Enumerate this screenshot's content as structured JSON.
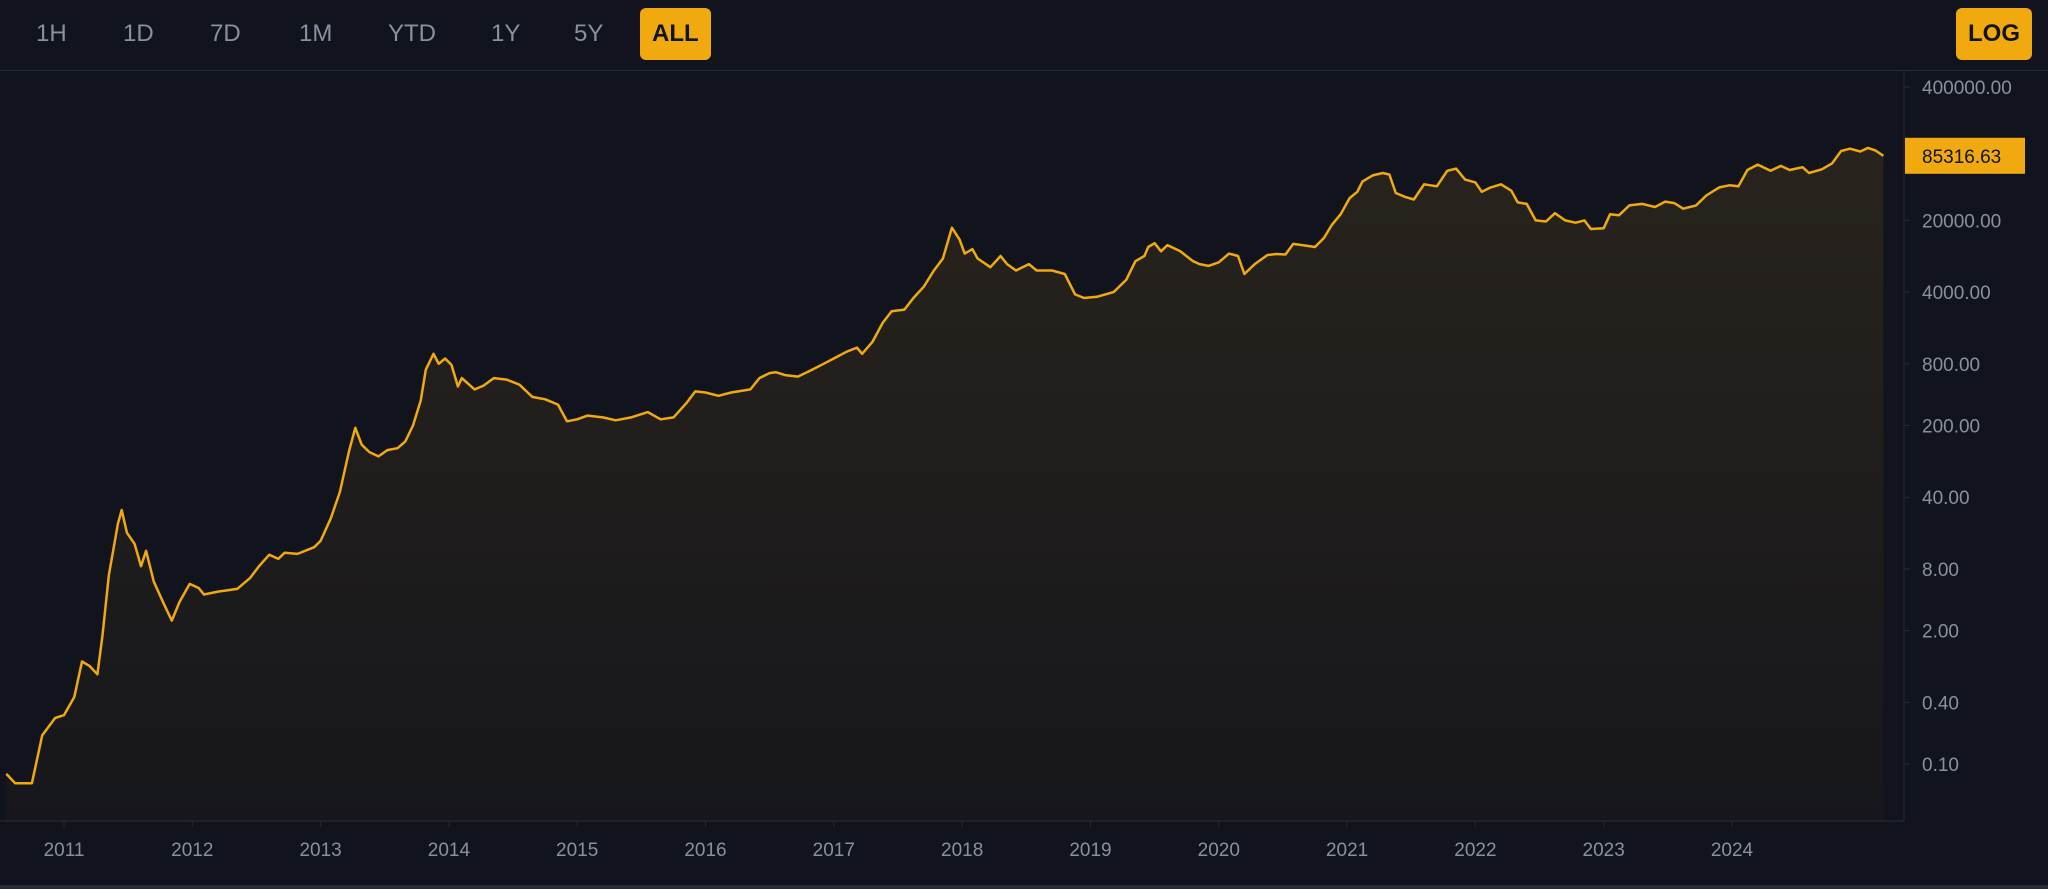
{
  "toolbar": {
    "ranges": [
      {
        "label": "1H",
        "active": false
      },
      {
        "label": "1D",
        "active": false
      },
      {
        "label": "7D",
        "active": false
      },
      {
        "label": "1M",
        "active": false
      },
      {
        "label": "YTD",
        "active": false
      },
      {
        "label": "1Y",
        "active": false
      },
      {
        "label": "5Y",
        "active": false
      },
      {
        "label": "ALL",
        "active": true
      }
    ],
    "log_label": "LOG"
  },
  "colors": {
    "background": "#12141d",
    "accent": "#f0a90f",
    "grid_text": "#8a90a0"
  },
  "chart_data": {
    "type": "line",
    "scale": "log",
    "title": "",
    "xlabel": "",
    "ylabel": "",
    "y_ticks": [
      400000,
      20000,
      4000,
      800,
      200,
      40,
      8,
      2,
      0.4,
      0.1
    ],
    "y_tick_labels": [
      "400000.00",
      "20000.00",
      "4000.00",
      "800.00",
      "200.00",
      "40.00",
      "8.00",
      "2.00",
      "0.40",
      "0.10"
    ],
    "x_tick_labels": [
      "2011",
      "2012",
      "2013",
      "2014",
      "2015",
      "2016",
      "2017",
      "2018",
      "2019",
      "2020",
      "2021",
      "2022",
      "2023",
      "2024"
    ],
    "last_price": 85316.63,
    "last_price_label": "85316.63",
    "series": [
      {
        "values": [
          [
            2010.55,
            0.08
          ],
          [
            2010.62,
            0.065
          ],
          [
            2010.75,
            0.065
          ],
          [
            2010.83,
            0.19
          ],
          [
            2010.93,
            0.28
          ],
          [
            2011.0,
            0.3
          ],
          [
            2011.08,
            0.45
          ],
          [
            2011.14,
            1.0
          ],
          [
            2011.2,
            0.9
          ],
          [
            2011.26,
            0.75
          ],
          [
            2011.3,
            1.8
          ],
          [
            2011.35,
            7
          ],
          [
            2011.42,
            22
          ],
          [
            2011.45,
            30
          ],
          [
            2011.49,
            18
          ],
          [
            2011.55,
            14
          ],
          [
            2011.6,
            8.5
          ],
          [
            2011.64,
            12
          ],
          [
            2011.7,
            6
          ],
          [
            2011.78,
            3.6
          ],
          [
            2011.84,
            2.5
          ],
          [
            2011.9,
            3.8
          ],
          [
            2011.98,
            5.7
          ],
          [
            2012.05,
            5.2
          ],
          [
            2012.09,
            4.5
          ],
          [
            2012.2,
            4.8
          ],
          [
            2012.35,
            5.1
          ],
          [
            2012.45,
            6.5
          ],
          [
            2012.52,
            8.5
          ],
          [
            2012.6,
            11
          ],
          [
            2012.67,
            10
          ],
          [
            2012.72,
            11.5
          ],
          [
            2012.82,
            11.2
          ],
          [
            2012.95,
            13
          ],
          [
            2013.0,
            15
          ],
          [
            2013.08,
            25
          ],
          [
            2013.15,
            45
          ],
          [
            2013.22,
            110
          ],
          [
            2013.27,
            190
          ],
          [
            2013.32,
            130
          ],
          [
            2013.38,
            110
          ],
          [
            2013.45,
            100
          ],
          [
            2013.52,
            115
          ],
          [
            2013.6,
            120
          ],
          [
            2013.66,
            140
          ],
          [
            2013.72,
            200
          ],
          [
            2013.78,
            350
          ],
          [
            2013.82,
            700
          ],
          [
            2013.88,
            1000
          ],
          [
            2013.92,
            800
          ],
          [
            2013.97,
            900
          ],
          [
            2014.02,
            780
          ],
          [
            2014.07,
            480
          ],
          [
            2014.1,
            580
          ],
          [
            2014.2,
            450
          ],
          [
            2014.27,
            490
          ],
          [
            2014.35,
            580
          ],
          [
            2014.45,
            560
          ],
          [
            2014.55,
            500
          ],
          [
            2014.65,
            380
          ],
          [
            2014.75,
            360
          ],
          [
            2014.85,
            320
          ],
          [
            2014.92,
            220
          ],
          [
            2015.0,
            230
          ],
          [
            2015.08,
            250
          ],
          [
            2015.2,
            240
          ],
          [
            2015.3,
            225
          ],
          [
            2015.42,
            240
          ],
          [
            2015.55,
            270
          ],
          [
            2015.65,
            230
          ],
          [
            2015.75,
            240
          ],
          [
            2015.85,
            330
          ],
          [
            2015.92,
            430
          ],
          [
            2016.0,
            420
          ],
          [
            2016.1,
            390
          ],
          [
            2016.2,
            420
          ],
          [
            2016.35,
            450
          ],
          [
            2016.42,
            580
          ],
          [
            2016.5,
            650
          ],
          [
            2016.55,
            660
          ],
          [
            2016.62,
            620
          ],
          [
            2016.72,
            600
          ],
          [
            2016.82,
            690
          ],
          [
            2016.92,
            800
          ],
          [
            2017.0,
            900
          ],
          [
            2017.1,
            1050
          ],
          [
            2017.18,
            1150
          ],
          [
            2017.22,
            1000
          ],
          [
            2017.3,
            1300
          ],
          [
            2017.38,
            2000
          ],
          [
            2017.45,
            2600
          ],
          [
            2017.55,
            2700
          ],
          [
            2017.62,
            3500
          ],
          [
            2017.7,
            4500
          ],
          [
            2017.78,
            6500
          ],
          [
            2017.85,
            8500
          ],
          [
            2017.92,
            17000
          ],
          [
            2017.98,
            13000
          ],
          [
            2018.02,
            9500
          ],
          [
            2018.08,
            10500
          ],
          [
            2018.12,
            8500
          ],
          [
            2018.22,
            7000
          ],
          [
            2018.3,
            9000
          ],
          [
            2018.35,
            7500
          ],
          [
            2018.42,
            6500
          ],
          [
            2018.52,
            7500
          ],
          [
            2018.58,
            6500
          ],
          [
            2018.7,
            6500
          ],
          [
            2018.8,
            6000
          ],
          [
            2018.88,
            3800
          ],
          [
            2018.95,
            3500
          ],
          [
            2019.05,
            3600
          ],
          [
            2019.18,
            4000
          ],
          [
            2019.28,
            5300
          ],
          [
            2019.35,
            8000
          ],
          [
            2019.42,
            9000
          ],
          [
            2019.45,
            11000
          ],
          [
            2019.5,
            12000
          ],
          [
            2019.55,
            10000
          ],
          [
            2019.6,
            11500
          ],
          [
            2019.7,
            10000
          ],
          [
            2019.8,
            8000
          ],
          [
            2019.85,
            7500
          ],
          [
            2019.92,
            7200
          ],
          [
            2020.0,
            7800
          ],
          [
            2020.08,
            9500
          ],
          [
            2020.15,
            9000
          ],
          [
            2020.2,
            6000
          ],
          [
            2020.28,
            7500
          ],
          [
            2020.38,
            9200
          ],
          [
            2020.45,
            9400
          ],
          [
            2020.52,
            9300
          ],
          [
            2020.58,
            11800
          ],
          [
            2020.65,
            11500
          ],
          [
            2020.75,
            11000
          ],
          [
            2020.82,
            13500
          ],
          [
            2020.88,
            18000
          ],
          [
            2020.95,
            23000
          ],
          [
            2021.02,
            33000
          ],
          [
            2021.08,
            38000
          ],
          [
            2021.12,
            48000
          ],
          [
            2021.2,
            55000
          ],
          [
            2021.28,
            58000
          ],
          [
            2021.33,
            56000
          ],
          [
            2021.38,
            37000
          ],
          [
            2021.45,
            34000
          ],
          [
            2021.52,
            32000
          ],
          [
            2021.6,
            45000
          ],
          [
            2021.7,
            43000
          ],
          [
            2021.78,
            61000
          ],
          [
            2021.85,
            64000
          ],
          [
            2021.92,
            50000
          ],
          [
            2022.0,
            47000
          ],
          [
            2022.05,
            38000
          ],
          [
            2022.12,
            42000
          ],
          [
            2022.2,
            45000
          ],
          [
            2022.28,
            39000
          ],
          [
            2022.33,
            30000
          ],
          [
            2022.4,
            29000
          ],
          [
            2022.47,
            20000
          ],
          [
            2022.55,
            19500
          ],
          [
            2022.62,
            23500
          ],
          [
            2022.7,
            20000
          ],
          [
            2022.78,
            19000
          ],
          [
            2022.85,
            20000
          ],
          [
            2022.9,
            16500
          ],
          [
            2023.0,
            16800
          ],
          [
            2023.05,
            23000
          ],
          [
            2023.12,
            22500
          ],
          [
            2023.2,
            28000
          ],
          [
            2023.3,
            29000
          ],
          [
            2023.4,
            27000
          ],
          [
            2023.48,
            30500
          ],
          [
            2023.55,
            29500
          ],
          [
            2023.62,
            26000
          ],
          [
            2023.72,
            28000
          ],
          [
            2023.8,
            35000
          ],
          [
            2023.9,
            42000
          ],
          [
            2023.98,
            44000
          ],
          [
            2024.05,
            43000
          ],
          [
            2024.12,
            62000
          ],
          [
            2024.2,
            70000
          ],
          [
            2024.3,
            61000
          ],
          [
            2024.38,
            68000
          ],
          [
            2024.45,
            62000
          ],
          [
            2024.55,
            66000
          ],
          [
            2024.6,
            58000
          ],
          [
            2024.7,
            63000
          ],
          [
            2024.78,
            72000
          ],
          [
            2024.85,
            95000
          ],
          [
            2024.92,
            100000
          ],
          [
            2025.0,
            94000
          ],
          [
            2025.06,
            102000
          ],
          [
            2025.12,
            96000
          ],
          [
            2025.18,
            85316.63
          ]
        ]
      }
    ]
  }
}
